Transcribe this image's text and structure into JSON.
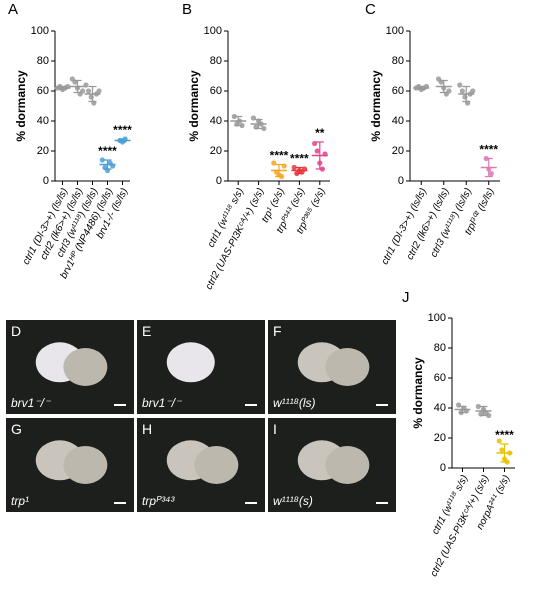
{
  "chart_data": [
    {
      "type": "dot",
      "panel": "A",
      "y_label": "% dormancy",
      "categories": [
        "ctrl1 (Dl-3>+) (ls/ls)",
        "ctrl2 (lk6>+) (ls/ls)",
        "ctrl3 (w¹¹¹⁸) (ls/ls)",
        "brv1ᴴᴾ (NP4486) (ls/ls)",
        "brv1-/- (ls/ls)"
      ],
      "colors": [
        "#999999",
        "#999999",
        "#999999",
        "#4a9fd4",
        "#4a9fd4"
      ],
      "points": [
        [
          62,
          63,
          61,
          62,
          63
        ],
        [
          68,
          66,
          62,
          58,
          60
        ],
        [
          64,
          60,
          56,
          52,
          58,
          60
        ],
        [
          14,
          9,
          7,
          12,
          10
        ],
        [
          27,
          26,
          28
        ]
      ],
      "means": [
        62,
        63,
        58,
        11,
        27
      ],
      "errors": [
        1,
        4,
        5,
        3,
        1
      ],
      "annotations": [
        null,
        null,
        null,
        "****",
        "****"
      ],
      "ylim": [
        0,
        100
      ],
      "yticks": [
        0,
        20,
        40,
        60,
        80,
        100
      ]
    },
    {
      "type": "dot",
      "panel": "B",
      "y_label": "% dormancy",
      "categories": [
        "ctrl1 (w¹¹¹⁸ s/s)",
        "ctrl2 (UAS-PI3Kᶜᴬ/+) (s/s)",
        "trp¹ (s/s)",
        "trpᴾ³⁴³ (s/s)",
        "trpᴾ³⁶⁵ (s/s)"
      ],
      "colors": [
        "#999999",
        "#999999",
        "#f5a623",
        "#e8343c",
        "#e0448c"
      ],
      "points": [
        [
          43,
          38,
          40,
          37
        ],
        [
          42,
          36,
          40,
          38,
          35
        ],
        [
          12,
          6,
          4,
          3,
          10
        ],
        [
          9,
          5,
          7,
          6,
          8
        ],
        [
          25,
          20,
          12,
          8,
          18
        ]
      ],
      "means": [
        40,
        38,
        7,
        7,
        17
      ],
      "errors": [
        3,
        3,
        4,
        2,
        9
      ],
      "annotations": [
        null,
        null,
        "****",
        "****",
        "**"
      ],
      "ylim": [
        0,
        100
      ],
      "yticks": [
        0,
        20,
        40,
        60,
        80,
        100
      ]
    },
    {
      "type": "dot",
      "panel": "C",
      "y_label": "% dormancy",
      "categories": [
        "ctrl1 (Dl-3>+) (ls/ls)",
        "ctrl2 (lk6>+) (ls/ls)",
        "ctrl3 (w¹¹¹⁸) (ls/ls)",
        "trpl³⁰² (ls/ls)"
      ],
      "colors": [
        "#999999",
        "#999999",
        "#999999",
        "#e07ab0"
      ],
      "points": [
        [
          62,
          63,
          61,
          62,
          63
        ],
        [
          68,
          66,
          62,
          58,
          60
        ],
        [
          64,
          60,
          56,
          52,
          58,
          60
        ],
        [
          15,
          8,
          5
        ]
      ],
      "means": [
        62,
        63,
        58,
        9
      ],
      "errors": [
        1,
        4,
        5,
        6
      ],
      "annotations": [
        null,
        null,
        null,
        "****"
      ],
      "ylim": [
        0,
        100
      ],
      "yticks": [
        0,
        20,
        40,
        60,
        80,
        100
      ]
    },
    {
      "type": "dot",
      "panel": "J",
      "y_label": "% dormancy",
      "categories": [
        "ctrl1 (w¹¹¹⁸ s/s)",
        "ctrl2 (UAS-PI3Kᶜᴬ/+) (s/s)",
        "norpA²⁴¹ (s/s)"
      ],
      "colors": [
        "#999999",
        "#999999",
        "#e8c000"
      ],
      "points": [
        [
          42,
          37,
          40,
          38
        ],
        [
          41,
          36,
          39,
          37,
          35
        ],
        [
          18,
          12,
          6,
          4,
          10
        ]
      ],
      "means": [
        39,
        38,
        10
      ],
      "errors": [
        2,
        3,
        6
      ],
      "annotations": [
        null,
        null,
        "****"
      ],
      "ylim": [
        0,
        100
      ],
      "yticks": [
        0,
        20,
        40,
        60,
        80,
        100
      ]
    }
  ],
  "images": {
    "tiles": [
      {
        "letter": "D",
        "caption": "brv1⁻/⁻"
      },
      {
        "letter": "E",
        "caption": "brv1⁻/⁻"
      },
      {
        "letter": "F",
        "caption": "w¹¹¹⁸(ls)"
      },
      {
        "letter": "G",
        "caption": "trp¹"
      },
      {
        "letter": "H",
        "caption": "trpᴾ³⁴³"
      },
      {
        "letter": "I",
        "caption": "w¹¹¹⁸(s)"
      }
    ]
  }
}
